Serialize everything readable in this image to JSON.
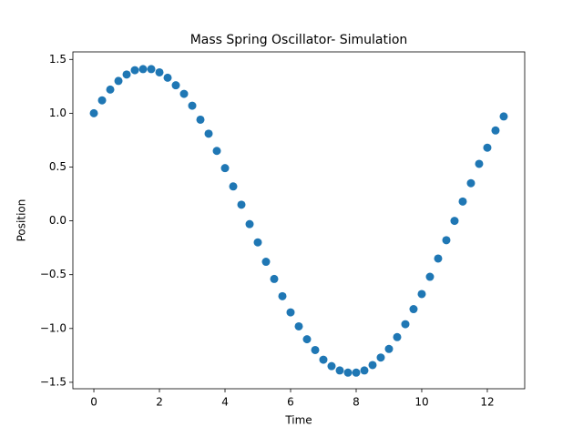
{
  "chart_data": {
    "type": "scatter",
    "title": "Mass Spring Oscillator- Simulation",
    "x_label": "Time",
    "y_label": "Position",
    "color": "#1f77b4",
    "x": [
      0,
      0.25,
      0.5,
      0.75,
      1,
      1.25,
      1.5,
      1.75,
      2,
      2.25,
      2.5,
      2.75,
      3,
      3.25,
      3.5,
      3.75,
      4,
      4.25,
      4.5,
      4.75,
      5,
      5.25,
      5.5,
      5.75,
      6,
      6.25,
      6.5,
      6.75,
      7,
      7.25,
      7.5,
      7.75,
      8,
      8.25,
      8.5,
      8.75,
      9,
      9.25,
      9.5,
      9.75,
      10,
      10.25,
      10.5,
      10.75,
      11,
      11.25,
      11.5,
      11.75,
      12,
      12.25,
      12.5
    ],
    "values": [
      1.0,
      1.12,
      1.22,
      1.3,
      1.36,
      1.4,
      1.41,
      1.41,
      1.38,
      1.33,
      1.26,
      1.18,
      1.07,
      0.94,
      0.81,
      0.65,
      0.49,
      0.32,
      0.15,
      -0.03,
      -0.2,
      -0.38,
      -0.54,
      -0.7,
      -0.85,
      -0.98,
      -1.1,
      -1.2,
      -1.29,
      -1.35,
      -1.39,
      -1.41,
      -1.41,
      -1.39,
      -1.34,
      -1.27,
      -1.19,
      -1.08,
      -0.96,
      -0.82,
      -0.68,
      -0.52,
      -0.35,
      -0.18,
      0.0,
      0.18,
      0.35,
      0.53,
      0.68,
      0.84,
      0.97
    ],
    "xlim": [
      -0.64,
      13.14
    ],
    "ylim": [
      -1.56,
      1.57
    ],
    "xticks": [
      0,
      2,
      4,
      6,
      8,
      10,
      12
    ],
    "yticks": [
      {
        "value": -1.5,
        "label": "−1.5"
      },
      {
        "value": -1.0,
        "label": "−1.0"
      },
      {
        "value": -0.5,
        "label": "−0.5"
      },
      {
        "value": 0.0,
        "label": "0.0"
      },
      0.5,
      {
        "value": 1.0,
        "label": "1.0"
      },
      1.5
    ]
  }
}
